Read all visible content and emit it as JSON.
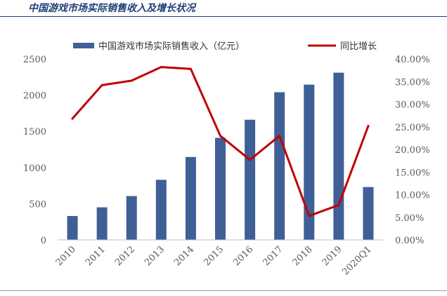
{
  "page": {
    "title": "中国游戏市场实际销售收入及增长状况"
  },
  "chart_data": {
    "type": "bar",
    "title": "",
    "categories": [
      "2010",
      "2011",
      "2012",
      "2013",
      "2014",
      "2015",
      "2016",
      "2017",
      "2018",
      "2019",
      "2020Q1"
    ],
    "series": [
      {
        "name": "中国游戏市场实际销售收入（亿元）",
        "type": "bar",
        "axis": "left",
        "color": "#3f5f97",
        "values": [
          330,
          450,
          605,
          830,
          1145,
          1410,
          1660,
          2040,
          2145,
          2310,
          730
        ]
      },
      {
        "name": "同比增长",
        "type": "line",
        "axis": "right",
        "color": "#c00000",
        "values": [
          26.8,
          34.2,
          35.2,
          38.2,
          37.8,
          23.0,
          17.7,
          23.0,
          5.3,
          7.7,
          25.2
        ]
      }
    ],
    "y_left": {
      "min": 0,
      "max": 2500,
      "ticks": [
        0,
        500,
        1000,
        1500,
        2000,
        2500
      ]
    },
    "y_right": {
      "min": 0,
      "max": 40,
      "ticks": [
        0,
        5,
        10,
        15,
        20,
        25,
        30,
        35,
        40
      ],
      "tick_labels": [
        "0.00%",
        "5.00%",
        "10.00%",
        "15.00%",
        "20.00%",
        "25.00%",
        "30.00%",
        "35.00%",
        "40.00%"
      ]
    },
    "legend_position": "top",
    "grid": false
  }
}
